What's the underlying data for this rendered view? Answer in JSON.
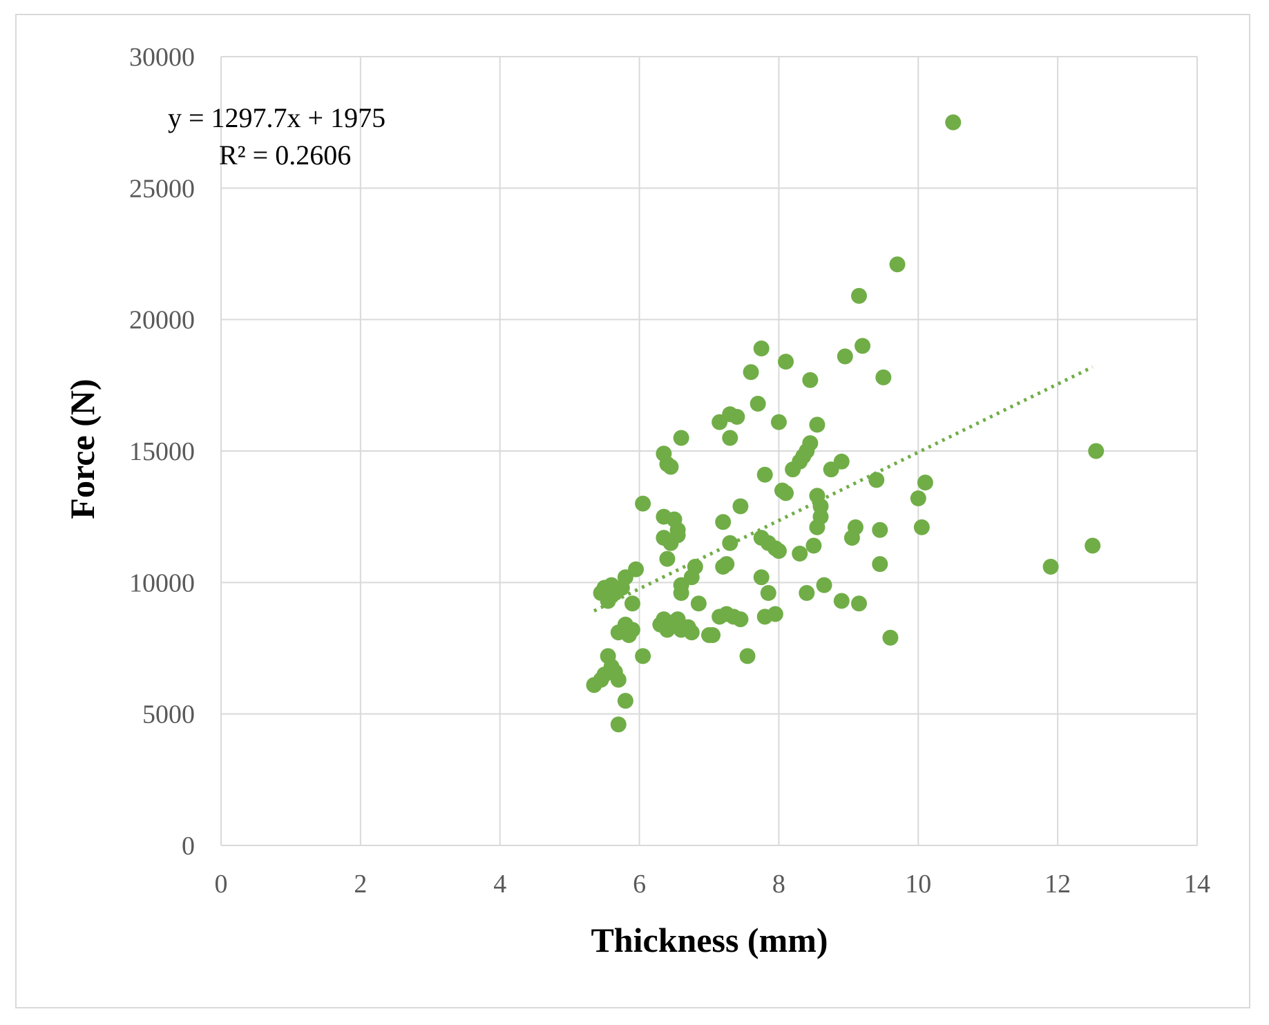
{
  "chart_data": {
    "type": "scatter",
    "title": "",
    "xlabel": "Thickness (mm)",
    "ylabel": "Force (N)",
    "xlim": [
      0,
      14
    ],
    "ylim": [
      0,
      30000
    ],
    "x_ticks": [
      0,
      2,
      4,
      6,
      8,
      10,
      12,
      14
    ],
    "y_ticks": [
      0,
      5000,
      10000,
      15000,
      20000,
      25000,
      30000
    ],
    "grid": true,
    "legend": "none",
    "marker_color": "#70ad47",
    "trendline": {
      "type": "linear",
      "slope": 1297.7,
      "intercept": 1975,
      "x_range": [
        5.35,
        12.5
      ],
      "equation_text": "y = 1297.7x + 1975",
      "r2_text": "R² = 0.2606",
      "color": "#70ad47",
      "style": "dotted"
    },
    "series": [
      {
        "x": [
          10.5,
          9.7,
          9.15,
          9.2,
          7.75,
          8.1,
          8.95,
          7.6,
          9.5,
          8.45,
          7.7,
          7.3,
          7.15,
          7.4,
          8.0,
          7.3,
          8.55,
          6.6,
          6.35,
          6.4,
          6.45,
          8.45,
          8.4,
          8.35,
          8.3,
          8.2,
          8.9,
          8.75,
          7.8,
          8.1,
          9.4,
          10.1,
          10.0,
          8.05,
          8.55,
          8.6,
          6.05,
          6.35,
          6.5,
          6.55,
          7.2,
          7.45,
          8.6,
          8.55,
          9.1,
          9.45,
          8.5,
          6.35,
          6.45,
          6.55,
          7.75,
          7.85,
          7.95,
          8.0,
          9.05,
          10.05,
          12.55,
          12.5,
          9.45,
          6.4,
          5.95,
          7.2,
          7.25,
          7.3,
          6.75,
          6.6,
          8.3,
          6.35,
          5.8,
          5.75,
          5.9,
          5.65,
          5.55,
          5.45,
          5.5,
          5.6,
          6.6,
          6.8,
          7.75,
          7.85,
          8.65,
          8.4,
          6.3,
          6.35,
          6.55,
          6.6,
          5.7,
          5.8,
          5.85,
          5.9,
          6.4,
          6.5,
          6.7,
          6.85,
          7.0,
          6.75,
          7.05,
          7.15,
          7.25,
          7.35,
          7.45,
          7.8,
          7.95,
          8.9,
          9.15,
          6.05,
          9.6,
          5.55,
          5.5,
          5.6,
          5.45,
          5.65,
          5.7,
          5.35,
          5.8,
          5.7,
          7.55,
          11.9
        ],
        "y": [
          27500,
          22100,
          20900,
          19000,
          18900,
          18400,
          18600,
          18000,
          17800,
          17700,
          16800,
          16400,
          16100,
          16300,
          16100,
          15500,
          16000,
          15500,
          14900,
          14500,
          14400,
          15300,
          15000,
          14800,
          14600,
          14300,
          14600,
          14300,
          14100,
          13400,
          13900,
          13800,
          13200,
          13500,
          13300,
          12900,
          13000,
          12500,
          12400,
          12000,
          12300,
          12900,
          12500,
          12100,
          12100,
          12000,
          11400,
          11700,
          11500,
          11800,
          11700,
          11500,
          11300,
          11200,
          11700,
          12100,
          15000,
          11400,
          10700,
          10900,
          10500,
          10600,
          10700,
          11500,
          10200,
          9900,
          11100,
          8400,
          10200,
          9800,
          9200,
          9600,
          9300,
          9600,
          9800,
          9900,
          9600,
          10600,
          10200,
          9600,
          9900,
          9600,
          8400,
          8600,
          8600,
          8200,
          8100,
          8400,
          8000,
          8200,
          8200,
          8500,
          8300,
          9200,
          8000,
          8100,
          8000,
          8700,
          8800,
          8700,
          8600,
          8700,
          8800,
          9300,
          9200,
          7200,
          7900,
          7200,
          6500,
          6800,
          6300,
          6600,
          6300,
          6100,
          5500,
          4600,
          7200,
          10600
        ]
      }
    ]
  }
}
